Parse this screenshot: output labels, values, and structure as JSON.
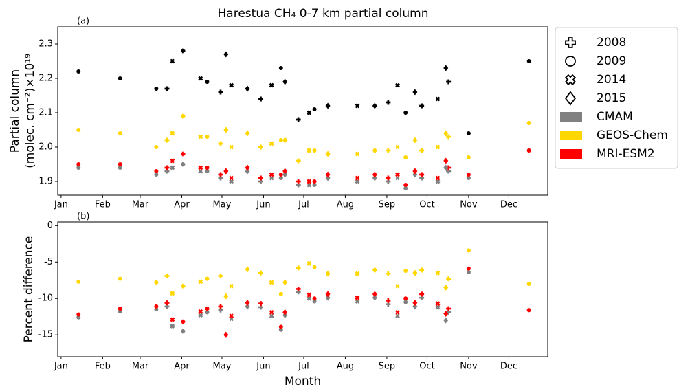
{
  "chart_data": [
    {
      "type": "scatter",
      "title": "Harestua CH₄ 0-7 km partial column",
      "panel": "(a)",
      "ylabel": [
        "Partial column",
        "(molec. cm⁻²)×10¹⁹"
      ],
      "xlim": [
        -1.5,
        364
      ],
      "ylim": [
        1.86,
        2.35
      ],
      "xticks": [
        {
          "value": 1,
          "label": "Jan"
        },
        {
          "value": 32,
          "label": "Feb"
        },
        {
          "value": 60,
          "label": "Mar"
        },
        {
          "value": 91,
          "label": "Apr"
        },
        {
          "value": 121,
          "label": "May"
        },
        {
          "value": 152,
          "label": "Jun"
        },
        {
          "value": 182,
          "label": "Jul"
        },
        {
          "value": 213,
          "label": "Aug"
        },
        {
          "value": 244,
          "label": "Sep"
        },
        {
          "value": 274,
          "label": "Oct"
        },
        {
          "value": 305,
          "label": "Nov"
        },
        {
          "value": 335,
          "label": "Dec"
        }
      ],
      "yticks": [
        1.9,
        {
          "value": 2,
          "label": "2.0"
        },
        2.1,
        2.2,
        2.3
      ],
      "legend": {
        "markers": [
          {
            "label": "2008",
            "marker": "plus"
          },
          {
            "label": "2009",
            "marker": "circle"
          },
          {
            "label": "2014",
            "marker": "x"
          },
          {
            "label": "2015",
            "marker": "diamond"
          }
        ],
        "colors": [
          {
            "label": "CMAM",
            "color": "#808080"
          },
          {
            "label": "GEOS-Chem",
            "color": "#ffd700"
          },
          {
            "label": "MRI-ESM2",
            "color": "#ff0000"
          }
        ]
      },
      "groups": [
        {
          "marker": "plus",
          "x": [
            80,
            120,
            150,
            178,
            245,
            270,
            290
          ],
          "series": [
            {
              "color": "#000000",
              "values": [
                2.17,
                2.16,
                2.14,
                2.08,
                2.13,
                2.12,
                2.19
              ]
            },
            {
              "color": "#808080",
              "values": [
                1.93,
                1.91,
                1.9,
                1.89,
                1.9,
                1.91,
                1.93
              ]
            },
            {
              "color": "#ffd700",
              "values": [
                2.02,
                2.01,
                2.0,
                1.96,
                1.99,
                1.99,
                2.03
              ]
            },
            {
              "color": "#ff0000",
              "values": [
                1.94,
                1.92,
                1.91,
                1.9,
                1.91,
                1.92,
                1.94
              ]
            }
          ]
        },
        {
          "marker": "circle",
          "x": [
            14,
            45,
            72,
            110,
            165,
            190,
            258,
            305,
            350
          ],
          "series": [
            {
              "color": "#000000",
              "values": [
                2.22,
                2.2,
                2.17,
                2.19,
                2.23,
                2.11,
                2.1,
                2.04,
                2.25
              ]
            },
            {
              "color": "#808080",
              "values": [
                1.94,
                1.94,
                1.92,
                1.93,
                1.91,
                1.89,
                1.88,
                1.91,
                1.99
              ]
            },
            {
              "color": "#ffd700",
              "values": [
                2.05,
                2.04,
                2.0,
                2.03,
                2.02,
                1.99,
                1.97,
                1.97,
                2.07
              ]
            },
            {
              "color": "#ff0000",
              "values": [
                1.95,
                1.95,
                1.93,
                1.94,
                1.92,
                1.9,
                1.89,
                1.92,
                1.99
              ]
            }
          ]
        },
        {
          "marker": "x",
          "x": [
            84,
            105,
            128,
            158,
            186,
            222,
            252,
            282
          ],
          "series": [
            {
              "color": "#000000",
              "values": [
                2.25,
                2.2,
                2.18,
                2.18,
                2.1,
                2.12,
                2.18,
                2.14
              ]
            },
            {
              "color": "#808080",
              "values": [
                1.94,
                1.93,
                1.9,
                1.91,
                1.89,
                1.9,
                1.91,
                1.9
              ]
            },
            {
              "color": "#ffd700",
              "values": [
                2.04,
                2.03,
                2.0,
                2.01,
                1.99,
                1.98,
                2.0,
                2.0
              ]
            },
            {
              "color": "#ff0000",
              "values": [
                1.96,
                1.94,
                1.91,
                1.92,
                1.9,
                1.91,
                1.92,
                1.91
              ]
            }
          ]
        },
        {
          "marker": "diamond",
          "x": [
            92,
            124,
            140,
            168,
            200,
            235,
            265,
            288
          ],
          "series": [
            {
              "color": "#000000",
              "values": [
                2.28,
                2.27,
                2.17,
                2.19,
                2.12,
                2.12,
                2.16,
                2.23
              ]
            },
            {
              "color": "#808080",
              "values": [
                1.95,
                1.93,
                1.93,
                1.92,
                1.91,
                1.91,
                1.92,
                1.94
              ]
            },
            {
              "color": "#ffd700",
              "values": [
                2.09,
                2.05,
                2.04,
                2.02,
                1.98,
                1.99,
                2.02,
                2.04
              ]
            },
            {
              "color": "#ff0000",
              "values": [
                1.98,
                1.93,
                1.94,
                1.93,
                1.92,
                1.92,
                1.93,
                1.96
              ]
            }
          ]
        }
      ]
    },
    {
      "type": "scatter",
      "panel": "(b)",
      "ylabel": [
        "Percent difference"
      ],
      "xlabel": "Month",
      "xlim": [
        -1.5,
        364
      ],
      "ylim": [
        -18,
        0.5
      ],
      "xticks": [
        {
          "value": 1,
          "label": "Jan"
        },
        {
          "value": 32,
          "label": "Feb"
        },
        {
          "value": 60,
          "label": "Mar"
        },
        {
          "value": 91,
          "label": "Apr"
        },
        {
          "value": 121,
          "label": "May"
        },
        {
          "value": 152,
          "label": "Jun"
        },
        {
          "value": 182,
          "label": "Jul"
        },
        {
          "value": 213,
          "label": "Aug"
        },
        {
          "value": 244,
          "label": "Sep"
        },
        {
          "value": 274,
          "label": "Oct"
        },
        {
          "value": 305,
          "label": "Nov"
        },
        {
          "value": 335,
          "label": "Dec"
        }
      ],
      "yticks": [
        0,
        -5,
        -10,
        -15
      ],
      "groups": [
        {
          "marker": "plus",
          "x": [
            80,
            120,
            150,
            178,
            245,
            270,
            290
          ],
          "series": [
            {
              "color": "#808080",
              "values": [
                -11.1,
                -11.6,
                -11.2,
                -9.1,
                -10.8,
                -9.9,
                -11.9
              ]
            },
            {
              "color": "#ffd700",
              "values": [
                -6.9,
                -6.9,
                -6.5,
                -5.8,
                -6.6,
                -6.1,
                -7.3
              ]
            },
            {
              "color": "#ff0000",
              "values": [
                -10.6,
                -11.1,
                -10.7,
                -8.7,
                -10.3,
                -9.4,
                -11.4
              ]
            }
          ]
        },
        {
          "marker": "circle",
          "x": [
            14,
            45,
            72,
            110,
            165,
            190,
            258,
            305,
            350
          ],
          "series": [
            {
              "color": "#808080",
              "values": [
                -12.6,
                -11.8,
                -11.5,
                -11.9,
                -14.3,
                -10.4,
                -10.5,
                -6.4,
                -11.6
              ]
            },
            {
              "color": "#ffd700",
              "values": [
                -7.7,
                -7.3,
                -7.8,
                -7.3,
                -9.4,
                -5.7,
                -6.2,
                -3.4,
                -8.0
              ]
            },
            {
              "color": "#ff0000",
              "values": [
                -12.2,
                -11.4,
                -11.1,
                -11.4,
                -13.9,
                -10.0,
                -10.0,
                -5.9,
                -11.6
              ]
            }
          ]
        },
        {
          "marker": "x",
          "x": [
            84,
            105,
            128,
            158,
            186,
            222,
            252,
            282
          ],
          "series": [
            {
              "color": "#808080",
              "values": [
                -13.8,
                -12.3,
                -12.8,
                -12.4,
                -10.0,
                -10.4,
                -12.4,
                -11.2
              ]
            },
            {
              "color": "#ffd700",
              "values": [
                -9.3,
                -7.7,
                -8.3,
                -7.8,
                -5.2,
                -6.6,
                -8.3,
                -6.5
              ]
            },
            {
              "color": "#ff0000",
              "values": [
                -12.9,
                -11.8,
                -12.4,
                -11.9,
                -9.5,
                -9.9,
                -11.9,
                -10.7
              ]
            }
          ]
        },
        {
          "marker": "diamond",
          "x": [
            92,
            124,
            140,
            168,
            200,
            235,
            265,
            288
          ],
          "series": [
            {
              "color": "#808080",
              "values": [
                -14.5,
                -15.0,
                -11.1,
                -12.3,
                -9.9,
                -9.9,
                -11.1,
                -13.0
              ]
            },
            {
              "color": "#ffd700",
              "values": [
                -8.3,
                -9.7,
                -6.0,
                -7.8,
                -6.6,
                -6.1,
                -6.5,
                -8.5
              ]
            },
            {
              "color": "#ff0000",
              "values": [
                -13.2,
                -15.0,
                -10.6,
                -11.9,
                -9.4,
                -9.4,
                -10.6,
                -12.1
              ]
            }
          ]
        }
      ]
    }
  ]
}
